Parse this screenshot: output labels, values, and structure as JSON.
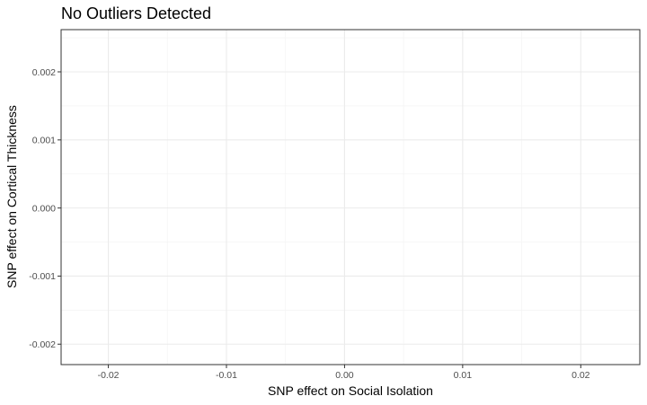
{
  "chart_data": {
    "type": "scatter",
    "title": "No Outliers Detected",
    "xlabel": "SNP effect on Social Isolation",
    "ylabel": "SNP effect on Cortical Thickness",
    "xlim": [
      -0.024,
      0.025
    ],
    "ylim": [
      -0.0023,
      0.00262
    ],
    "x_ticks": [
      -0.02,
      -0.01,
      0.0,
      0.01,
      0.02
    ],
    "x_tick_labels": [
      "-0.02",
      "-0.01",
      "0.00",
      "0.01",
      "0.02"
    ],
    "y_ticks": [
      0.002,
      0.001,
      0.0,
      -0.001,
      -0.002
    ],
    "y_tick_labels": [
      "0.002",
      "0.001",
      "0.000",
      "-0.001",
      "-0.002"
    ],
    "grid": true,
    "points": []
  }
}
